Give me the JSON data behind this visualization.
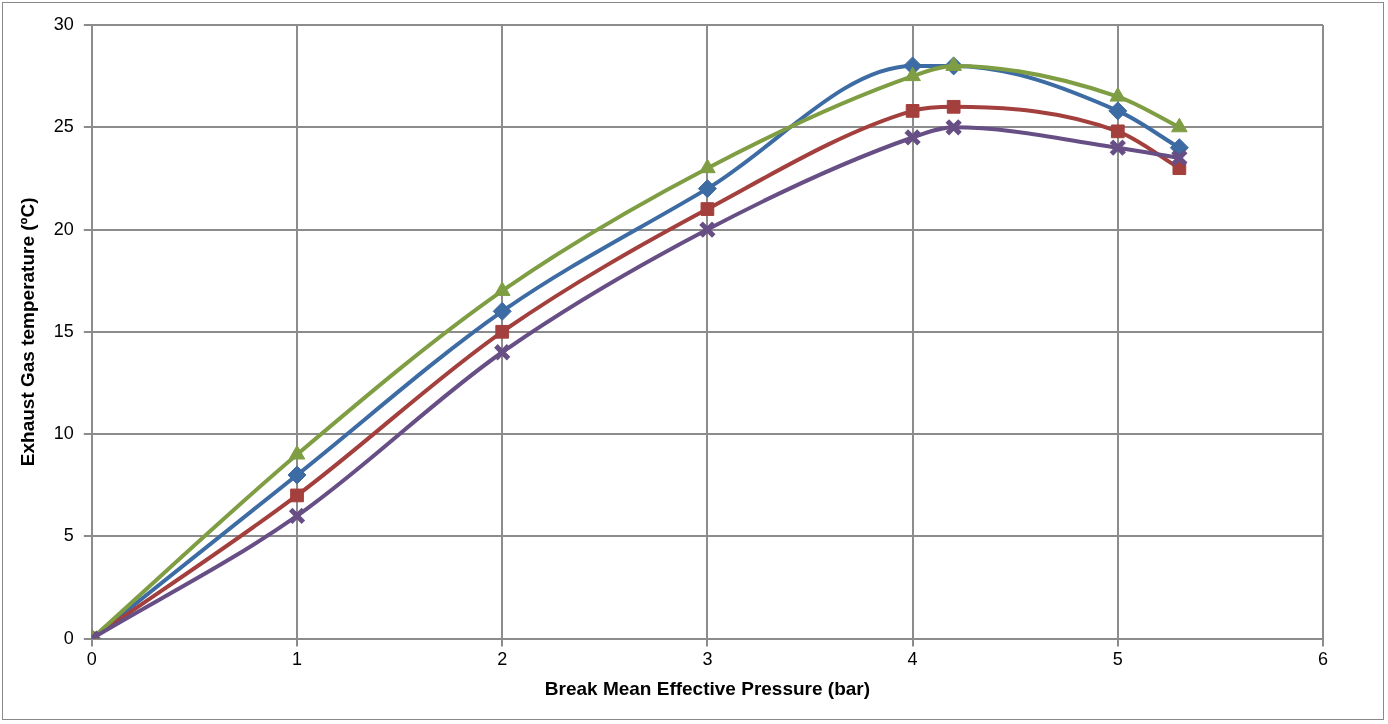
{
  "chart_data": {
    "type": "line",
    "xlabel": "Break Mean Effective Pressure (bar)",
    "ylabel": "Exhaust Gas temperature (ºC)",
    "xlim": [
      0,
      6
    ],
    "xticks": [
      0,
      1,
      2,
      3,
      4,
      5,
      6
    ],
    "ylim": [
      0,
      30
    ],
    "yticks": [
      0,
      5,
      10,
      15,
      20,
      25,
      30
    ],
    "grid": true,
    "legend": false,
    "x": [
      0,
      1,
      2,
      3,
      4,
      4.2,
      5,
      5.3
    ],
    "series": [
      {
        "color": "#3d6ba3",
        "marker": "diamond",
        "values": [
          0,
          8,
          16,
          22,
          28,
          28,
          25.8,
          24
        ]
      },
      {
        "color": "#a33f3c",
        "marker": "square",
        "values": [
          0,
          7,
          15,
          21,
          25.8,
          26,
          24.8,
          23
        ]
      },
      {
        "color": "#7f9e44",
        "marker": "triangle",
        "values": [
          0,
          9,
          17,
          23,
          27.5,
          28,
          26.5,
          25
        ]
      },
      {
        "color": "#674f86",
        "marker": "cross",
        "values": [
          0,
          6,
          14,
          20,
          24.5,
          25,
          24,
          23.5
        ]
      }
    ]
  }
}
